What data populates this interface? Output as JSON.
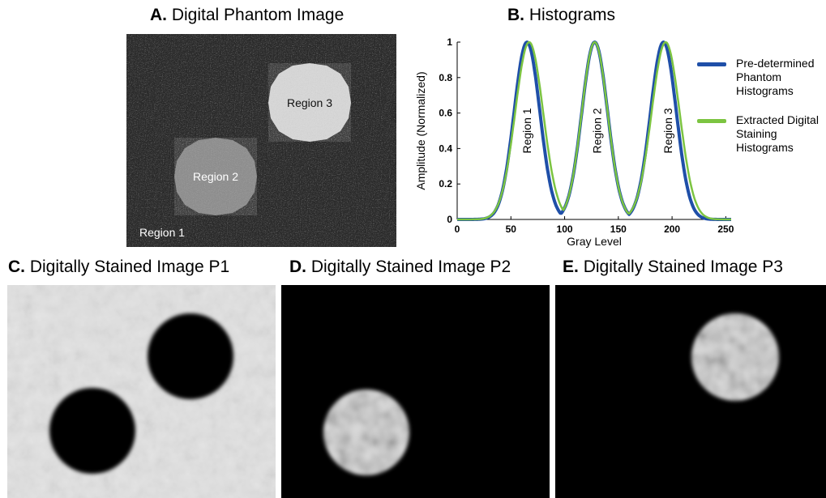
{
  "panel_a": {
    "prefix": "A.",
    "title": "Digital Phantom Image",
    "labels": {
      "region1": "Region 1",
      "region2": "Region 2",
      "region3": "Region 3"
    },
    "colors": {
      "background": "#2b2b2b",
      "region2": "#8f8f8f",
      "region3": "#d6d6d6"
    }
  },
  "panel_b": {
    "prefix": "B.",
    "title": "Histograms"
  },
  "panel_c": {
    "prefix": "C.",
    "title": "Digitally Stained Image P1"
  },
  "panel_d": {
    "prefix": "D.",
    "title": "Digitally Stained Image P2"
  },
  "panel_e": {
    "prefix": "E.",
    "title": "Digitally Stained Image P3"
  },
  "chart_data": {
    "type": "line",
    "xlabel": "Gray Level",
    "ylabel": "Amplitude (Normalized)",
    "xlim": [
      0,
      255
    ],
    "ylim": [
      0,
      1
    ],
    "xticks": [
      0,
      50,
      100,
      150,
      200,
      250
    ],
    "yticks": [
      0,
      0.2,
      0.4,
      0.6,
      0.8,
      1
    ],
    "grid": false,
    "legend_position": "right",
    "annotations": [
      {
        "text": "Region 1",
        "x": 65
      },
      {
        "text": "Region 2",
        "x": 130
      },
      {
        "text": "Region 3",
        "x": 196
      }
    ],
    "series": [
      {
        "name": "Pre-determined Phantom Histograms",
        "color": "#1f4fa8",
        "peaks": [
          {
            "center": 65,
            "sigma": 12
          },
          {
            "center": 128,
            "sigma": 12
          },
          {
            "center": 192,
            "sigma": 12
          }
        ]
      },
      {
        "name": "Extracted Digital Staining Histograms",
        "color": "#7cc441",
        "peaks": [
          {
            "center": 67,
            "sigma": 13
          },
          {
            "center": 128,
            "sigma": 12
          },
          {
            "center": 194,
            "sigma": 13
          }
        ]
      }
    ]
  }
}
